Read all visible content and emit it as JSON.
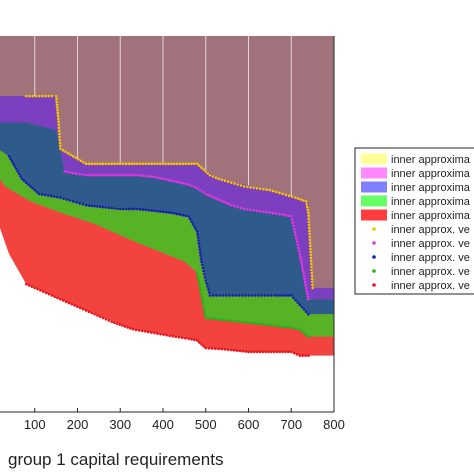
{
  "chart_data": {
    "type": "area",
    "title": "",
    "xlabel": "group 1 capital requirements",
    "ylabel": "",
    "xlim": [
      0,
      800
    ],
    "ylim": [
      0,
      1
    ],
    "grid": true,
    "legend_position": "right",
    "x_ticks": [
      100,
      200,
      300,
      400,
      500,
      600,
      700,
      800
    ],
    "x_tick_labels": [
      "100",
      "200",
      "300",
      "400",
      "500",
      "600",
      "700",
      "800"
    ],
    "background_region": {
      "color": "#a2727c"
    },
    "regions": [
      {
        "color": "#7c3fc0",
        "upper": [
          [
            0,
            0.84
          ],
          [
            80,
            0.84
          ],
          [
            150,
            0.84
          ],
          [
            160,
            0.7
          ],
          [
            220,
            0.66
          ],
          [
            340,
            0.66
          ],
          [
            480,
            0.66
          ],
          [
            530,
            0.62
          ],
          [
            650,
            0.59
          ],
          [
            740,
            0.56
          ],
          [
            750,
            0.33
          ],
          [
            800,
            0.33
          ]
        ],
        "lower": [
          [
            0,
            0.77
          ],
          [
            80,
            0.77
          ],
          [
            150,
            0.75
          ],
          [
            170,
            0.64
          ],
          [
            220,
            0.63
          ],
          [
            360,
            0.63
          ],
          [
            470,
            0.6
          ],
          [
            500,
            0.58
          ],
          [
            560,
            0.55
          ],
          [
            650,
            0.53
          ],
          [
            700,
            0.52
          ],
          [
            740,
            0.3
          ],
          [
            800,
            0.3
          ]
        ]
      },
      {
        "color": "#2e5b8c",
        "upper": [
          [
            0,
            0.77
          ],
          [
            80,
            0.77
          ],
          [
            150,
            0.75
          ],
          [
            170,
            0.64
          ],
          [
            220,
            0.63
          ],
          [
            360,
            0.63
          ],
          [
            470,
            0.6
          ],
          [
            500,
            0.58
          ],
          [
            560,
            0.55
          ],
          [
            650,
            0.53
          ],
          [
            700,
            0.52
          ],
          [
            740,
            0.3
          ],
          [
            800,
            0.3
          ]
        ],
        "lower": [
          [
            0,
            0.71
          ],
          [
            40,
            0.68
          ],
          [
            70,
            0.62
          ],
          [
            110,
            0.58
          ],
          [
            160,
            0.57
          ],
          [
            220,
            0.55
          ],
          [
            340,
            0.54
          ],
          [
            460,
            0.52
          ],
          [
            480,
            0.48
          ],
          [
            490,
            0.4
          ],
          [
            510,
            0.31
          ],
          [
            600,
            0.31
          ],
          [
            700,
            0.31
          ],
          [
            740,
            0.26
          ],
          [
            800,
            0.26
          ]
        ]
      },
      {
        "color": "#57b325",
        "upper": [
          [
            0,
            0.71
          ],
          [
            40,
            0.68
          ],
          [
            70,
            0.62
          ],
          [
            110,
            0.58
          ],
          [
            160,
            0.57
          ],
          [
            220,
            0.55
          ],
          [
            340,
            0.54
          ],
          [
            460,
            0.52
          ],
          [
            480,
            0.48
          ],
          [
            490,
            0.4
          ],
          [
            510,
            0.31
          ],
          [
            600,
            0.31
          ],
          [
            700,
            0.31
          ],
          [
            740,
            0.26
          ],
          [
            800,
            0.26
          ]
        ],
        "lower": [
          [
            0,
            0.65
          ],
          [
            30,
            0.6
          ],
          [
            90,
            0.56
          ],
          [
            160,
            0.53
          ],
          [
            240,
            0.5
          ],
          [
            340,
            0.45
          ],
          [
            450,
            0.4
          ],
          [
            480,
            0.37
          ],
          [
            500,
            0.25
          ],
          [
            580,
            0.24
          ],
          [
            660,
            0.23
          ],
          [
            720,
            0.22
          ],
          [
            740,
            0.2
          ],
          [
            800,
            0.2
          ]
        ]
      },
      {
        "color": "#f3433f",
        "upper": [
          [
            0,
            0.65
          ],
          [
            30,
            0.6
          ],
          [
            90,
            0.56
          ],
          [
            160,
            0.53
          ],
          [
            240,
            0.5
          ],
          [
            340,
            0.45
          ],
          [
            450,
            0.4
          ],
          [
            480,
            0.37
          ],
          [
            500,
            0.25
          ],
          [
            580,
            0.24
          ],
          [
            660,
            0.23
          ],
          [
            720,
            0.22
          ],
          [
            740,
            0.2
          ],
          [
            800,
            0.2
          ]
        ],
        "lower": [
          [
            0,
            0.55
          ],
          [
            40,
            0.42
          ],
          [
            80,
            0.34
          ],
          [
            160,
            0.3
          ],
          [
            240,
            0.26
          ],
          [
            330,
            0.22
          ],
          [
            430,
            0.2
          ],
          [
            480,
            0.19
          ],
          [
            500,
            0.17
          ],
          [
            600,
            0.16
          ],
          [
            700,
            0.16
          ],
          [
            720,
            0.15
          ],
          [
            740,
            0.15
          ],
          [
            800,
            0.15
          ]
        ]
      }
    ],
    "vertex_series": [
      {
        "color": "#f5c400",
        "points": [
          [
            80,
            0.84
          ],
          [
            110,
            0.84
          ],
          [
            140,
            0.84
          ],
          [
            150,
            0.84
          ],
          [
            155,
            0.78
          ],
          [
            160,
            0.7
          ],
          [
            190,
            0.68
          ],
          [
            220,
            0.66
          ],
          [
            260,
            0.66
          ],
          [
            300,
            0.66
          ],
          [
            340,
            0.66
          ],
          [
            380,
            0.66
          ],
          [
            420,
            0.66
          ],
          [
            460,
            0.66
          ],
          [
            480,
            0.66
          ],
          [
            495,
            0.645
          ],
          [
            510,
            0.63
          ],
          [
            530,
            0.62
          ],
          [
            560,
            0.61
          ],
          [
            590,
            0.6
          ],
          [
            620,
            0.595
          ],
          [
            650,
            0.59
          ],
          [
            680,
            0.58
          ],
          [
            710,
            0.57
          ],
          [
            735,
            0.56
          ],
          [
            740,
            0.53
          ],
          [
            742,
            0.49
          ],
          [
            744,
            0.45
          ],
          [
            746,
            0.41
          ],
          [
            748,
            0.37
          ],
          [
            750,
            0.33
          ]
        ]
      },
      {
        "color": "#e733e7",
        "points": [
          [
            170,
            0.64
          ],
          [
            190,
            0.635
          ],
          [
            220,
            0.63
          ],
          [
            260,
            0.63
          ],
          [
            300,
            0.63
          ],
          [
            340,
            0.63
          ],
          [
            380,
            0.625
          ],
          [
            420,
            0.615
          ],
          [
            460,
            0.605
          ],
          [
            480,
            0.595
          ],
          [
            500,
            0.58
          ],
          [
            530,
            0.565
          ],
          [
            560,
            0.55
          ],
          [
            590,
            0.54
          ],
          [
            620,
            0.535
          ],
          [
            650,
            0.53
          ],
          [
            680,
            0.525
          ],
          [
            700,
            0.52
          ],
          [
            710,
            0.47
          ],
          [
            720,
            0.42
          ],
          [
            730,
            0.36
          ],
          [
            740,
            0.3
          ]
        ]
      },
      {
        "color": "#1a1ab8",
        "points": [
          [
            40,
            0.68
          ],
          [
            70,
            0.62
          ],
          [
            110,
            0.58
          ],
          [
            160,
            0.57
          ],
          [
            190,
            0.56
          ],
          [
            220,
            0.55
          ],
          [
            260,
            0.545
          ],
          [
            300,
            0.54
          ],
          [
            340,
            0.54
          ],
          [
            380,
            0.535
          ],
          [
            420,
            0.53
          ],
          [
            460,
            0.52
          ],
          [
            470,
            0.5
          ],
          [
            480,
            0.48
          ],
          [
            490,
            0.4
          ],
          [
            500,
            0.35
          ],
          [
            510,
            0.31
          ],
          [
            540,
            0.31
          ],
          [
            570,
            0.31
          ],
          [
            600,
            0.31
          ],
          [
            630,
            0.31
          ],
          [
            660,
            0.31
          ],
          [
            700,
            0.31
          ],
          [
            720,
            0.285
          ],
          [
            740,
            0.26
          ]
        ]
      },
      {
        "color": "#1db81d",
        "points": [
          [
            480,
            0.37
          ],
          [
            500,
            0.25
          ],
          [
            520,
            0.248
          ],
          [
            540,
            0.245
          ],
          [
            560,
            0.243
          ],
          [
            580,
            0.24
          ],
          [
            600,
            0.238
          ],
          [
            620,
            0.235
          ],
          [
            640,
            0.233
          ],
          [
            660,
            0.23
          ],
          [
            680,
            0.227
          ],
          [
            700,
            0.225
          ],
          [
            720,
            0.22
          ],
          [
            730,
            0.21
          ],
          [
            740,
            0.2
          ]
        ]
      },
      {
        "color": "#e8121a",
        "points": [
          [
            80,
            0.34
          ],
          [
            120,
            0.32
          ],
          [
            160,
            0.3
          ],
          [
            200,
            0.28
          ],
          [
            240,
            0.26
          ],
          [
            280,
            0.24
          ],
          [
            330,
            0.22
          ],
          [
            380,
            0.21
          ],
          [
            430,
            0.2
          ],
          [
            460,
            0.195
          ],
          [
            480,
            0.19
          ],
          [
            500,
            0.17
          ],
          [
            530,
            0.168
          ],
          [
            560,
            0.165
          ],
          [
            600,
            0.16
          ],
          [
            640,
            0.16
          ],
          [
            680,
            0.16
          ],
          [
            700,
            0.16
          ],
          [
            720,
            0.15
          ],
          [
            740,
            0.15
          ]
        ]
      }
    ],
    "legend": [
      {
        "label": "inner approxima",
        "kind": "patch",
        "color": "#ffff99"
      },
      {
        "label": "inner approxima",
        "kind": "patch",
        "color": "#ff88ff"
      },
      {
        "label": "inner approxima",
        "kind": "patch",
        "color": "#8080ff"
      },
      {
        "label": "inner approxima",
        "kind": "patch",
        "color": "#66ff66"
      },
      {
        "label": "inner approxima",
        "kind": "patch",
        "color": "#ff3d3d"
      },
      {
        "label": "inner approx. ve",
        "kind": "marker",
        "color": "#f5c400"
      },
      {
        "label": "inner approx. ve",
        "kind": "marker",
        "color": "#e733e7"
      },
      {
        "label": "inner approx. ve",
        "kind": "marker",
        "color": "#1a1ab8"
      },
      {
        "label": "inner approx. ve",
        "kind": "marker",
        "color": "#1db81d"
      },
      {
        "label": "inner approx. ve",
        "kind": "marker",
        "color": "#e8121a"
      }
    ]
  }
}
